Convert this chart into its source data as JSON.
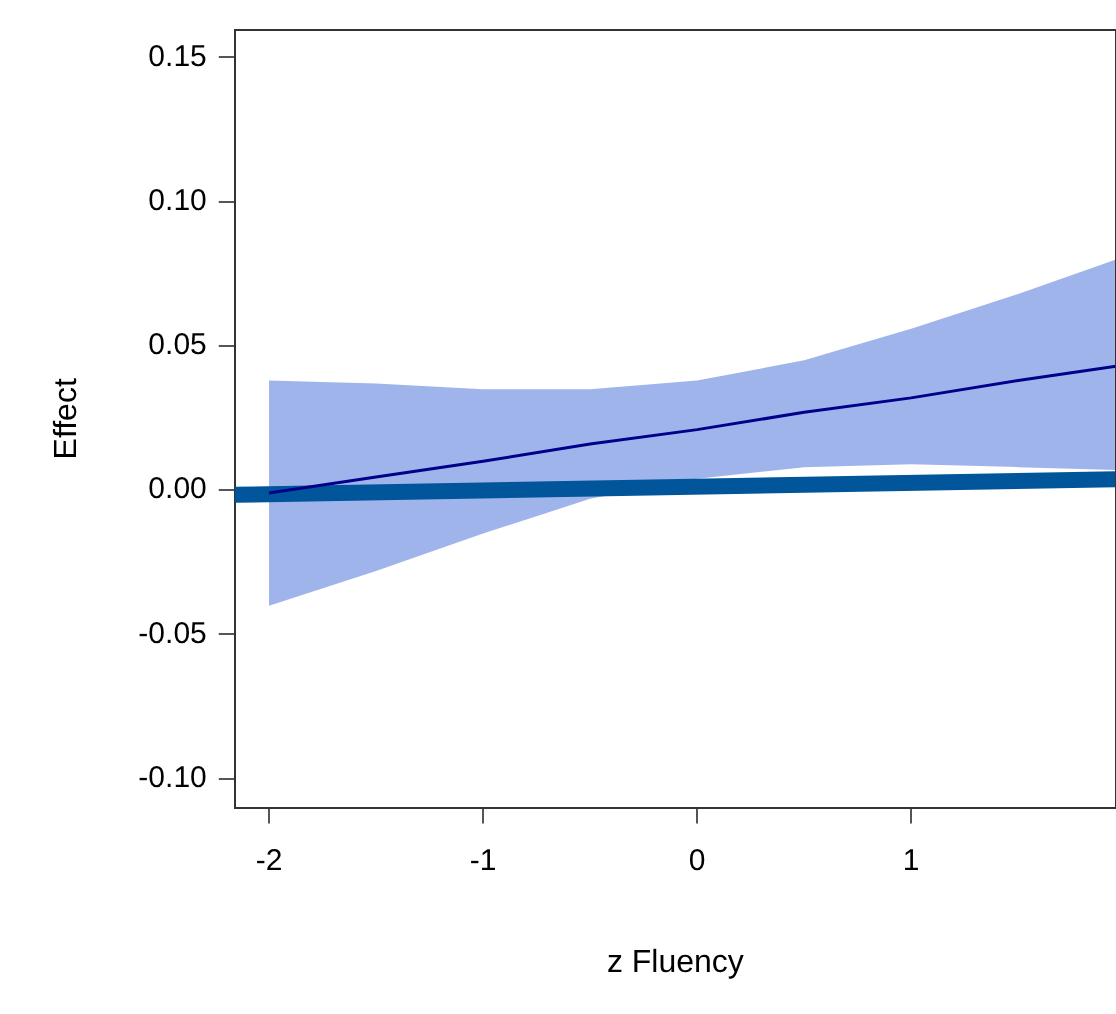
{
  "chart_data": {
    "type": "line",
    "xlabel": "z Fluency",
    "ylabel": "Effect",
    "xlim": [
      -2.16,
      1.957
    ],
    "xticks": [
      -2,
      -1,
      0,
      1
    ],
    "ylim": [
      -0.11,
      0.1595
    ],
    "yticks": [
      {
        "value": -0.1,
        "label": "-0.10"
      },
      -0.05,
      {
        "value": 0,
        "label": "0.00"
      },
      0.05,
      {
        "value": 0.1,
        "label": "0.10"
      },
      0.15
    ],
    "grid": false,
    "legend": false,
    "marker": "none",
    "line_style": "solid",
    "series": [
      {
        "color": "#00008b",
        "x": [
          -2,
          -1.5,
          -1,
          -0.5,
          0,
          0.5,
          1,
          1.5,
          1.957
        ],
        "values": [
          -0.001,
          0.0046,
          0.01,
          0.016,
          0.021,
          0.027,
          0.032,
          0.038,
          0.043
        ],
        "lower": [
          -0.04,
          -0.028,
          -0.015,
          -0.003,
          0.004,
          0.008,
          0.009,
          0.008,
          0.007
        ],
        "upper": [
          0.038,
          0.037,
          0.035,
          0.035,
          0.038,
          0.045,
          0.056,
          0.068,
          0.08
        ]
      },
      {
        "color": "#00559b",
        "x": [
          -2.16,
          1.957
        ],
        "values": [
          -0.0016,
          0.0038
        ]
      }
    ]
  }
}
